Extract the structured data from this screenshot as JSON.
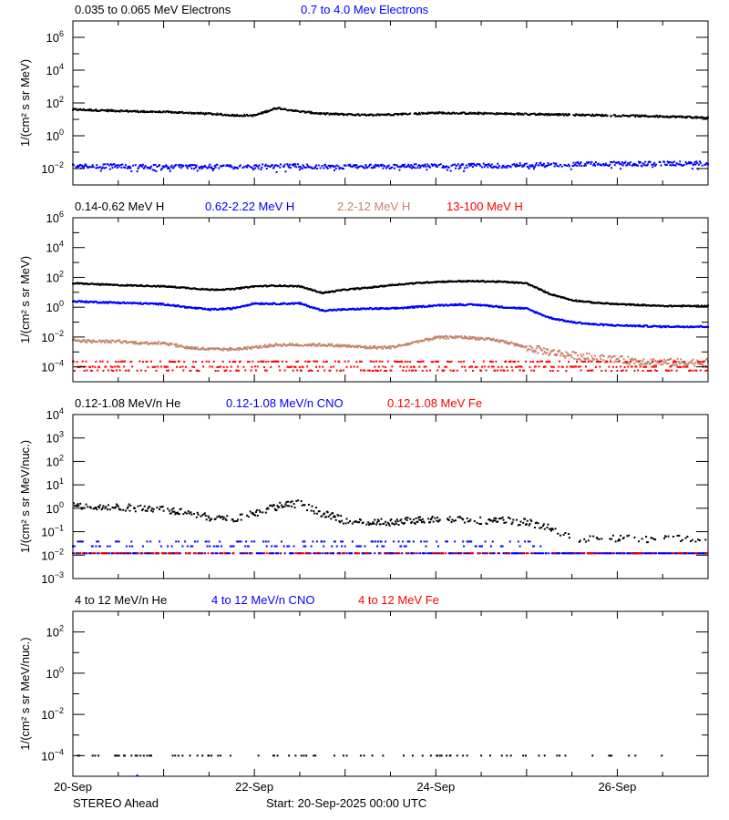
{
  "colors": {
    "black": "#000000",
    "blue": "#0000ff",
    "brown": "#c8826a",
    "red": "#ff0000",
    "background": "#ffffff"
  },
  "footer": {
    "spacecraft": "STEREO Ahead",
    "start": "Start: 20-Sep-2025 00:00 UTC"
  },
  "chart_data": [
    {
      "type": "scatter",
      "ylabel": "1/(cm² s sr MeV)",
      "yscale": "log",
      "ylim": [
        0.001,
        10000000
      ],
      "yticks_labeled": [
        0.01,
        1,
        100,
        10000,
        1000000
      ],
      "xlim": [
        "2025-09-20 00:00",
        "2025-09-27 00:00"
      ],
      "x": [
        "2025-09-20 00:00",
        "2025-09-20 06:00",
        "2025-09-20 12:00",
        "2025-09-20 18:00",
        "2025-09-21 00:00",
        "2025-09-21 06:00",
        "2025-09-21 12:00",
        "2025-09-21 18:00",
        "2025-09-22 00:00",
        "2025-09-22 06:00",
        "2025-09-22 12:00",
        "2025-09-22 18:00",
        "2025-09-23 00:00",
        "2025-09-23 06:00",
        "2025-09-23 12:00",
        "2025-09-23 18:00",
        "2025-09-24 00:00",
        "2025-09-24 06:00",
        "2025-09-24 12:00",
        "2025-09-24 18:00",
        "2025-09-25 00:00",
        "2025-09-25 06:00",
        "2025-09-25 12:00",
        "2025-09-25 18:00",
        "2025-09-26 00:00",
        "2025-09-26 06:00",
        "2025-09-26 12:00",
        "2025-09-26 18:00",
        "2025-09-27 00:00"
      ],
      "series": [
        {
          "name": "0.035 to 0.065 MeV Electrons",
          "color": "#000000",
          "values": [
            40,
            36,
            33,
            30,
            28,
            25,
            22,
            18,
            17,
            50,
            30,
            22,
            20,
            18,
            20,
            22,
            25,
            24,
            23,
            22,
            21,
            20,
            19,
            18,
            17,
            16,
            15,
            14,
            12
          ]
        },
        {
          "name": "0.7 to 4.0 Mev Electrons",
          "color": "#0000ff",
          "values": [
            0.014,
            0.014,
            0.014,
            0.013,
            0.013,
            0.013,
            0.013,
            0.013,
            0.013,
            0.014,
            0.014,
            0.013,
            0.013,
            0.013,
            0.013,
            0.014,
            0.014,
            0.014,
            0.015,
            0.015,
            0.016,
            0.017,
            0.018,
            0.019,
            0.02,
            0.02,
            0.02,
            0.02,
            0.02
          ]
        }
      ]
    },
    {
      "type": "scatter",
      "ylabel": "1/(cm² s sr MeV)",
      "yscale": "log",
      "ylim": [
        1e-05,
        1000000
      ],
      "yticks_labeled": [
        0.0001,
        0.01,
        1,
        100,
        10000,
        1000000
      ],
      "xlim": [
        "2025-09-20 00:00",
        "2025-09-27 00:00"
      ],
      "x": [
        "2025-09-20 00:00",
        "2025-09-20 06:00",
        "2025-09-20 12:00",
        "2025-09-20 18:00",
        "2025-09-21 00:00",
        "2025-09-21 06:00",
        "2025-09-21 12:00",
        "2025-09-21 18:00",
        "2025-09-22 00:00",
        "2025-09-22 06:00",
        "2025-09-22 12:00",
        "2025-09-22 18:00",
        "2025-09-23 00:00",
        "2025-09-23 06:00",
        "2025-09-23 12:00",
        "2025-09-23 18:00",
        "2025-09-24 00:00",
        "2025-09-24 06:00",
        "2025-09-24 12:00",
        "2025-09-24 18:00",
        "2025-09-25 00:00",
        "2025-09-25 06:00",
        "2025-09-25 12:00",
        "2025-09-25 18:00",
        "2025-09-26 00:00",
        "2025-09-26 06:00",
        "2025-09-26 12:00",
        "2025-09-26 18:00",
        "2025-09-27 00:00"
      ],
      "series": [
        {
          "name": "0.14-0.62 MeV H",
          "color": "#000000",
          "values": [
            40,
            35,
            30,
            28,
            25,
            20,
            15,
            16,
            25,
            28,
            25,
            9,
            15,
            20,
            30,
            40,
            50,
            55,
            55,
            50,
            40,
            8,
            3,
            2,
            1.6,
            1.4,
            1.2,
            1.2,
            1.2
          ]
        },
        {
          "name": "0.62-2.22 MeV H",
          "color": "#0000ff",
          "values": [
            2.5,
            2.2,
            2,
            1.8,
            1.6,
            1.0,
            0.7,
            0.8,
            1.8,
            1.7,
            1.8,
            0.6,
            0.7,
            0.8,
            0.8,
            1.0,
            1.3,
            1.5,
            1.4,
            1.0,
            0.8,
            0.2,
            0.1,
            0.07,
            0.06,
            0.055,
            0.05,
            0.05,
            0.05
          ]
        },
        {
          "name": "2.2-12 MeV H",
          "color": "#c8826a",
          "values": [
            0.006,
            0.005,
            0.005,
            0.004,
            0.004,
            0.002,
            0.0015,
            0.0015,
            0.002,
            0.003,
            0.003,
            0.003,
            0.0025,
            0.002,
            0.002,
            0.004,
            0.009,
            0.01,
            0.008,
            0.005,
            0.002,
            0.001,
            0.0006,
            0.0004,
            0.0003,
            0.00025,
            0.0002,
            0.0002,
            0.0002
          ]
        },
        {
          "name": "13-100 MeV H",
          "color": "#ff0000",
          "values": [
            0.0001,
            0.0001,
            0.0001,
            0.0001,
            0.0001,
            0.0001,
            0.0001,
            0.0001,
            0.0001,
            0.0001,
            0.0001,
            0.0001,
            0.0001,
            0.0001,
            0.0001,
            0.0001,
            0.0001,
            0.0001,
            0.0001,
            0.0001,
            0.0001,
            0.0001,
            0.0001,
            0.0001,
            0.0001,
            0.0001,
            0.0001,
            0.0001,
            0.0001
          ]
        }
      ]
    },
    {
      "type": "scatter",
      "ylabel": "1/(cm² s sr MeV/nuc.)",
      "yscale": "log",
      "ylim": [
        0.001,
        10000
      ],
      "yticks_labeled": [
        0.001,
        0.01,
        0.1,
        1,
        10,
        100,
        1000,
        10000
      ],
      "xlim": [
        "2025-09-20 00:00",
        "2025-09-27 00:00"
      ],
      "x": [
        "2025-09-20 00:00",
        "2025-09-20 06:00",
        "2025-09-20 12:00",
        "2025-09-20 18:00",
        "2025-09-21 00:00",
        "2025-09-21 06:00",
        "2025-09-21 12:00",
        "2025-09-21 18:00",
        "2025-09-22 00:00",
        "2025-09-22 06:00",
        "2025-09-22 12:00",
        "2025-09-22 18:00",
        "2025-09-23 00:00",
        "2025-09-23 06:00",
        "2025-09-23 12:00",
        "2025-09-23 18:00",
        "2025-09-24 00:00",
        "2025-09-24 06:00",
        "2025-09-24 12:00",
        "2025-09-24 18:00",
        "2025-09-25 00:00",
        "2025-09-25 06:00",
        "2025-09-25 12:00",
        "2025-09-25 18:00",
        "2025-09-26 00:00",
        "2025-09-26 06:00",
        "2025-09-26 12:00",
        "2025-09-26 18:00",
        "2025-09-27 00:00"
      ],
      "series": [
        {
          "name": "0.12-1.08 MeV/n He",
          "color": "#000000",
          "values": [
            1.3,
            1.2,
            1.1,
            1.0,
            0.9,
            0.7,
            0.4,
            0.35,
            0.6,
            1.2,
            1.6,
            0.6,
            0.3,
            0.25,
            0.25,
            0.3,
            0.35,
            0.35,
            0.3,
            0.3,
            0.25,
            0.15,
            0.05,
            0.05,
            0.05,
            0.05,
            0.05,
            0.05,
            0.05
          ]
        },
        {
          "name": "0.12-1.08 MeV/n CNO",
          "color": "#0000ff",
          "values": [
            0.012,
            0.012,
            0.012,
            0.012,
            0.012,
            0.012,
            0.012,
            0.012,
            0.012,
            0.012,
            0.012,
            0.012,
            0.012,
            0.012,
            0.012,
            0.012,
            0.012,
            0.012,
            0.012,
            0.012,
            0.012,
            0.012,
            0.012,
            0.012,
            0.012,
            0.012,
            0.012,
            0.012,
            0.012
          ]
        },
        {
          "name": "0.12-1.08 MeV Fe",
          "color": "#ff0000",
          "values": [
            0.012,
            0.012,
            0.012,
            0.012,
            0.012,
            0.012,
            0.012,
            0.012,
            0.012,
            0.012,
            0.012,
            0.012,
            0.012,
            0.012,
            0.012,
            0.012,
            0.012,
            0.012,
            0.012,
            0.012,
            0.012,
            0.012,
            0.012,
            0.012,
            0.012,
            0.012,
            0.012,
            0.012,
            0.012
          ]
        }
      ]
    },
    {
      "type": "scatter",
      "ylabel": "1/(cm² s sr MeV/nuc.)",
      "yscale": "log",
      "ylim": [
        1e-05,
        1000
      ],
      "yticks_labeled": [
        0.0001,
        0.01,
        1,
        100
      ],
      "xlim": [
        "2025-09-20 00:00",
        "2025-09-27 00:00"
      ],
      "xtick_labels": [
        "20-Sep",
        "22-Sep",
        "24-Sep",
        "26-Sep"
      ],
      "xtick_values": [
        "2025-09-20 00:00",
        "2025-09-22 00:00",
        "2025-09-24 00:00",
        "2025-09-26 00:00"
      ],
      "x": [
        "2025-09-20 00:00",
        "2025-09-20 06:00",
        "2025-09-20 12:00",
        "2025-09-20 18:00",
        "2025-09-21 00:00",
        "2025-09-21 06:00",
        "2025-09-21 12:00",
        "2025-09-21 18:00",
        "2025-09-22 00:00",
        "2025-09-22 06:00",
        "2025-09-22 12:00",
        "2025-09-22 18:00",
        "2025-09-23 00:00",
        "2025-09-23 06:00",
        "2025-09-23 12:00",
        "2025-09-23 18:00",
        "2025-09-24 00:00",
        "2025-09-24 06:00",
        "2025-09-24 12:00",
        "2025-09-24 18:00",
        "2025-09-25 00:00",
        "2025-09-25 06:00",
        "2025-09-25 12:00",
        "2025-09-25 18:00",
        "2025-09-26 00:00",
        "2025-09-26 06:00",
        "2025-09-26 12:00",
        "2025-09-26 18:00",
        "2025-09-27 00:00"
      ],
      "series": [
        {
          "name": "4 to 12 MeV/n He",
          "color": "#000000",
          "values": [
            0.0001,
            0.0001,
            0.0001,
            0.0001,
            0.0001,
            0.0001,
            0.0001,
            0.0001,
            0.0001,
            0.0001,
            0.0001,
            0.0001,
            0.0001,
            0.0001,
            0.0001,
            0.0001,
            0.0001,
            0.0001,
            0.0001,
            0.0001,
            0.0001,
            0.0001,
            0.0001,
            0.0001,
            0.0001,
            0.0001,
            0.0001,
            0.0001,
            null
          ]
        },
        {
          "name": "4 to 12 MeV/n CNO",
          "color": "#0000ff",
          "points": [
            {
              "x": "2025-09-20 17:00",
              "y": 1.1e-05
            }
          ]
        },
        {
          "name": "4 to 12 MeV Fe",
          "color": "#ff0000",
          "values": []
        }
      ]
    }
  ]
}
